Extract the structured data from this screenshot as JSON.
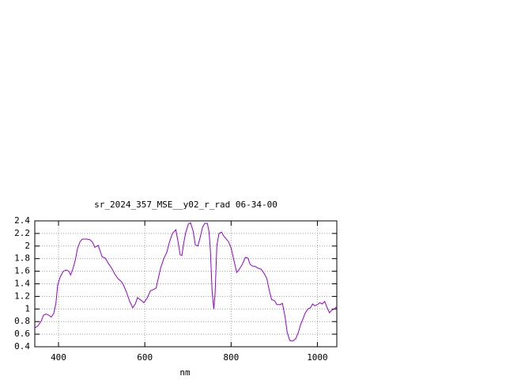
{
  "chart_data": {
    "type": "line",
    "title": "sr_2024_357_MSE__y02_r_rad 06-34-00",
    "x_label": "nm",
    "x": [
      345,
      352,
      360,
      365,
      371,
      378,
      383,
      389,
      394,
      398,
      404,
      411,
      418,
      424,
      428,
      433,
      439,
      444,
      450,
      455,
      466,
      473,
      479,
      484,
      492,
      495,
      501,
      508,
      516,
      523,
      530,
      538,
      545,
      550,
      558,
      565,
      572,
      578,
      583,
      591,
      598,
      606,
      613,
      620,
      626,
      631,
      637,
      644,
      651,
      657,
      664,
      672,
      677,
      682,
      686,
      690,
      695,
      701,
      706,
      712,
      717,
      723,
      728,
      734,
      739,
      745,
      749,
      752,
      756,
      760,
      763,
      767,
      772,
      778,
      783,
      789,
      794,
      800,
      805,
      813,
      818,
      826,
      833,
      839,
      844,
      850,
      855,
      862,
      870,
      877,
      883,
      888,
      894,
      901,
      906,
      914,
      919,
      925,
      930,
      936,
      943,
      950,
      956,
      961,
      967,
      972,
      978,
      984,
      989,
      994,
      1000,
      1006,
      1011,
      1017,
      1022,
      1028,
      1033,
      1039,
      1045
    ],
    "series": [
      {
        "name": "rad",
        "color": "#9400d3",
        "values": [
          0.7,
          0.73,
          0.81,
          0.9,
          0.92,
          0.9,
          0.87,
          0.93,
          1.09,
          1.38,
          1.51,
          1.6,
          1.62,
          1.6,
          1.54,
          1.63,
          1.78,
          1.96,
          2.07,
          2.11,
          2.11,
          2.1,
          2.06,
          1.98,
          2.01,
          1.95,
          1.83,
          1.81,
          1.72,
          1.65,
          1.56,
          1.48,
          1.44,
          1.39,
          1.26,
          1.12,
          1.02,
          1.08,
          1.18,
          1.14,
          1.1,
          1.18,
          1.29,
          1.31,
          1.33,
          1.48,
          1.66,
          1.8,
          1.9,
          2.06,
          2.2,
          2.26,
          2.07,
          1.86,
          1.85,
          2.04,
          2.22,
          2.35,
          2.37,
          2.24,
          2.02,
          2.0,
          2.13,
          2.3,
          2.36,
          2.36,
          2.22,
          1.93,
          1.28,
          1.0,
          1.26,
          2.01,
          2.2,
          2.22,
          2.16,
          2.11,
          2.07,
          1.97,
          1.82,
          1.58,
          1.62,
          1.71,
          1.82,
          1.81,
          1.71,
          1.68,
          1.68,
          1.65,
          1.63,
          1.56,
          1.48,
          1.31,
          1.15,
          1.13,
          1.07,
          1.07,
          1.09,
          0.88,
          0.63,
          0.5,
          0.49,
          0.53,
          0.63,
          0.75,
          0.85,
          0.94,
          1.0,
          1.02,
          1.08,
          1.05,
          1.07,
          1.1,
          1.08,
          1.12,
          1.03,
          0.94,
          0.98,
          1.0,
          1.04
        ]
      }
    ],
    "xlim": [
      345,
      1045
    ],
    "xticks": [
      400,
      600,
      800,
      1000
    ],
    "ylim": [
      0.4,
      2.4
    ],
    "yticks": [
      0.4,
      0.6,
      0.8,
      1,
      1.2,
      1.4,
      1.6,
      1.8,
      2,
      2.2,
      2.4
    ],
    "grid": true
  }
}
